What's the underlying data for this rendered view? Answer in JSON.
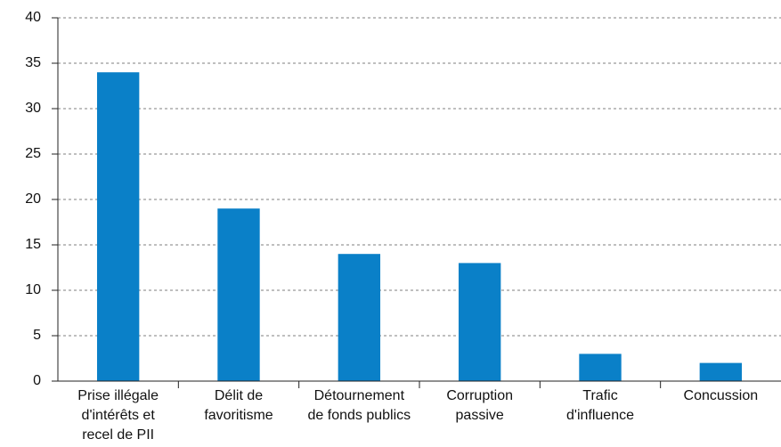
{
  "chart_data": {
    "type": "bar",
    "categories": [
      "Prise illégale\nd'intérêts et\nrecel de PII",
      "Délit de\nfavoritisme",
      "Détournement\nde fonds publics",
      "Corruption\npassive",
      "Trafic\nd'influence",
      "Concussion"
    ],
    "values": [
      34,
      19,
      14,
      13,
      3,
      2
    ],
    "color": "#0a80c8",
    "ylim": [
      0,
      40
    ],
    "yticks": [
      0,
      5,
      10,
      15,
      20,
      25,
      30,
      35,
      40
    ],
    "grid": true
  }
}
